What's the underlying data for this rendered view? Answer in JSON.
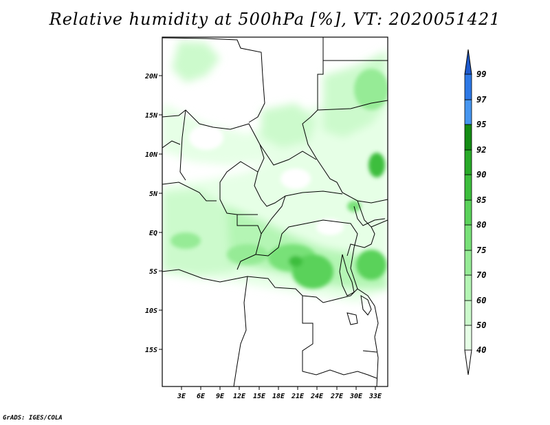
{
  "title": "Relative humidity at 500hPa [%], VT: 2020051421",
  "credit": "GrADS: IGES/COLA",
  "map": {
    "lat_labels": [
      "20N",
      "15N",
      "10N",
      "5N",
      "EQ",
      "5S",
      "10S",
      "15S"
    ],
    "lon_labels": [
      "3E",
      "6E",
      "9E",
      "12E",
      "15E",
      "18E",
      "21E",
      "24E",
      "27E",
      "30E",
      "33E"
    ]
  },
  "colorbar": {
    "levels": [
      "40",
      "50",
      "60",
      "70",
      "75",
      "80",
      "85",
      "90",
      "92",
      "95",
      "97",
      "99"
    ],
    "colors": [
      "#ffffff",
      "#e6ffe6",
      "#ccfacc",
      "#b4f5b4",
      "#96eb96",
      "#78e178",
      "#5ad25a",
      "#3cbe3c",
      "#28aa28",
      "#148c14",
      "#4696f0",
      "#2d78e6",
      "#1e5acd"
    ]
  }
}
